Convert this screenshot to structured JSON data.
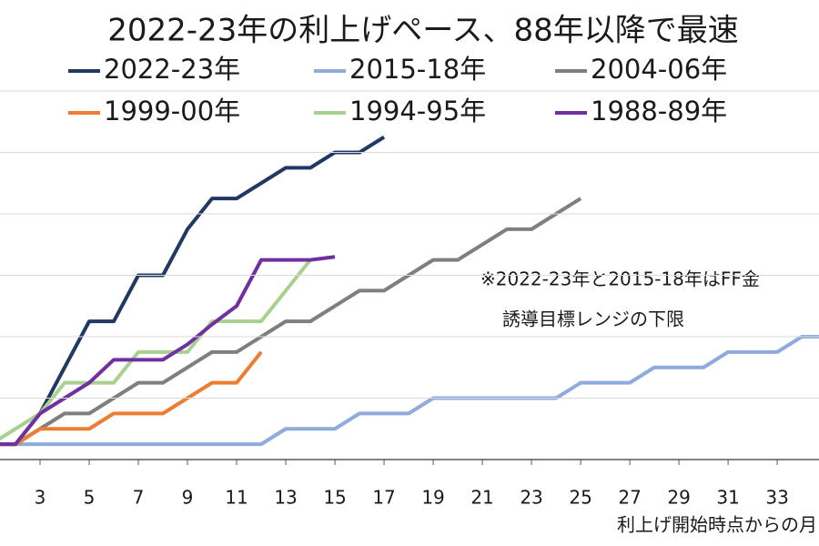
{
  "chart_data": {
    "type": "line",
    "title": "2022-23年の利上げペース、88年以降で最速",
    "x_label": "利上げ開始時点からの月",
    "annotations": [
      "※2022-23年と2015-18年はFF金",
      "誘導目標レンジの下限"
    ],
    "x": [
      1,
      2,
      3,
      4,
      5,
      6,
      7,
      8,
      9,
      10,
      11,
      12,
      13,
      14,
      15,
      16,
      17,
      18,
      19,
      20,
      21,
      22,
      23,
      24,
      25,
      26,
      27,
      28,
      29,
      30,
      31,
      32,
      33,
      34,
      35
    ],
    "xlim": [
      1.37,
      34.7
    ],
    "xticks": [
      3,
      5,
      7,
      9,
      11,
      13,
      15,
      17,
      19,
      21,
      23,
      25,
      27,
      29,
      31,
      33
    ],
    "ylim": [
      0,
      6
    ],
    "yticks": [
      0,
      1,
      2,
      3,
      4,
      5,
      6
    ],
    "grid": true,
    "series": [
      {
        "name": "2022-23年",
        "color": "#203864",
        "values": [
          0.25,
          0.25,
          0.75,
          1.5,
          2.25,
          2.25,
          3.0,
          3.0,
          3.75,
          4.25,
          4.25,
          4.5,
          4.75,
          4.75,
          5.0,
          5.0,
          5.25,
          null,
          null,
          null,
          null,
          null,
          null,
          null,
          null,
          null,
          null,
          null,
          null,
          null,
          null,
          null,
          null,
          null,
          null
        ]
      },
      {
        "name": "2015-18年",
        "color": "#8faadc",
        "values": [
          0.25,
          0.25,
          0.25,
          0.25,
          0.25,
          0.25,
          0.25,
          0.25,
          0.25,
          0.25,
          0.25,
          0.25,
          0.5,
          0.5,
          0.5,
          0.75,
          0.75,
          0.75,
          1.0,
          1.0,
          1.0,
          1.0,
          1.0,
          1.0,
          1.25,
          1.25,
          1.25,
          1.5,
          1.5,
          1.5,
          1.75,
          1.75,
          1.75,
          2.0,
          2.0
        ]
      },
      {
        "name": "2004-06年",
        "color": "#7f7f7f",
        "values": [
          0.25,
          0.25,
          0.5,
          0.75,
          0.75,
          1.0,
          1.25,
          1.25,
          1.5,
          1.75,
          1.75,
          2.0,
          2.25,
          2.25,
          2.5,
          2.75,
          2.75,
          3.0,
          3.25,
          3.25,
          3.5,
          3.75,
          3.75,
          4.0,
          4.25,
          null,
          null,
          null,
          null,
          null,
          null,
          null,
          null,
          null,
          null
        ]
      },
      {
        "name": "1999-00年",
        "color": "#ed7d31",
        "values": [
          0.25,
          0.25,
          0.5,
          0.5,
          0.5,
          0.75,
          0.75,
          0.75,
          1.0,
          1.25,
          1.25,
          1.75,
          null,
          null,
          null,
          null,
          null,
          null,
          null,
          null,
          null,
          null,
          null,
          null,
          null,
          null,
          null,
          null,
          null,
          null,
          null,
          null,
          null,
          null,
          null
        ]
      },
      {
        "name": "1994-95年",
        "color": "#a9d18e",
        "values": [
          0.25,
          0.5,
          0.75,
          1.25,
          1.25,
          1.25,
          1.75,
          1.75,
          1.75,
          2.25,
          2.25,
          2.25,
          2.75,
          3.25,
          null,
          null,
          null,
          null,
          null,
          null,
          null,
          null,
          null,
          null,
          null,
          null,
          null,
          null,
          null,
          null,
          null,
          null,
          null,
          null,
          null
        ]
      },
      {
        "name": "1988-89年",
        "color": "#7030a0",
        "values": [
          0.25,
          0.25,
          0.75,
          1.0,
          1.25,
          1.625,
          1.625,
          1.625,
          1.875,
          2.2,
          2.5,
          3.25,
          3.25,
          3.25,
          3.3,
          null,
          null,
          null,
          null,
          null,
          null,
          null,
          null,
          null,
          null,
          null,
          null,
          null,
          null,
          null,
          null,
          null,
          null,
          null,
          null
        ]
      }
    ]
  }
}
